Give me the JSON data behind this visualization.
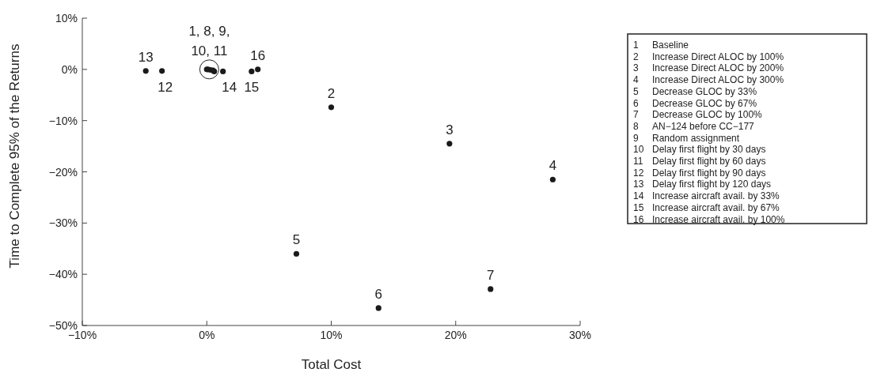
{
  "chart_data": {
    "type": "scatter",
    "xlabel": "Total Cost",
    "ylabel": "Time to Complete 95% of the Returns",
    "xlim": [
      -10,
      30
    ],
    "xticks": [
      {
        "value": -10,
        "label": "−10%"
      },
      {
        "value": 0,
        "label": "0%"
      },
      {
        "value": 10,
        "label": "10%"
      },
      {
        "value": 20,
        "label": "20%"
      },
      {
        "value": 30,
        "label": "30%"
      }
    ],
    "ylim": [
      -50,
      10
    ],
    "yticks": [
      {
        "value": 10,
        "label": "10%"
      },
      {
        "value": 0,
        "label": "0%"
      },
      {
        "value": -10,
        "label": "−10%"
      },
      {
        "value": -20,
        "label": "−20%"
      },
      {
        "value": -30,
        "label": "−30%"
      },
      {
        "value": -40,
        "label": "−40%"
      },
      {
        "value": -50,
        "label": "−50%"
      }
    ],
    "marker": "circle",
    "grid": false,
    "series": [
      {
        "color": "#1a1a1a",
        "x": [
          0,
          10.0,
          19.5,
          27.8,
          7.2,
          13.8,
          22.8,
          0.1,
          0.3,
          0.5,
          0.6,
          -3.6,
          -4.9,
          1.3,
          3.6,
          4.1
        ],
        "values": [
          0,
          -7.4,
          -14.5,
          -21.5,
          -36.0,
          -46.6,
          -42.9,
          0,
          -0.1,
          -0.2,
          -0.4,
          -0.3,
          -0.3,
          -0.4,
          -0.4,
          0
        ]
      }
    ],
    "annotations": [
      {
        "text": "1, 8, 9,\n10, 11",
        "x": 0.2,
        "y": 0
      },
      {
        "text": "2",
        "x": 10.0,
        "y": -7.4
      },
      {
        "text": "3",
        "x": 19.5,
        "y": -14.5
      },
      {
        "text": "4",
        "x": 27.8,
        "y": -21.5
      },
      {
        "text": "5",
        "x": 7.2,
        "y": -36.0
      },
      {
        "text": "6",
        "x": 13.8,
        "y": -46.6
      },
      {
        "text": "7",
        "x": 22.8,
        "y": -42.9
      },
      {
        "text": "12",
        "x": -3.6,
        "y": -0.3
      },
      {
        "text": "13",
        "x": -4.9,
        "y": -0.3
      },
      {
        "text": "14",
        "x": 1.3,
        "y": -0.4
      },
      {
        "text": "15",
        "x": 3.6,
        "y": -0.4
      },
      {
        "text": "16",
        "x": 4.1,
        "y": 0
      },
      "1\tBaseline",
      "2\tIncrease Direct ALOC by 100%",
      "3\tIncrease Direct ALOC by 200%",
      "4\tIncrease Direct ALOC by 300%",
      "5\tDecrease GLOC by 33%",
      "6\tDecrease GLOC by 67%",
      "7\tDecrease GLOC by 100%",
      "8\tAN−124 before CC−177",
      "9\tRandom assignment",
      "10\tDelay first flight by 30 days",
      "11\tDelay first flight by 60 days",
      "12\tDelay first flight by 90 days",
      "13\tDelay first flight by 120 days",
      "14\tIncrease aircraft avail. by 33%",
      "15\tIncrease aircraft avail. by 67%",
      "16\tIncrease aircraft avail. by 100%"
    ]
  }
}
